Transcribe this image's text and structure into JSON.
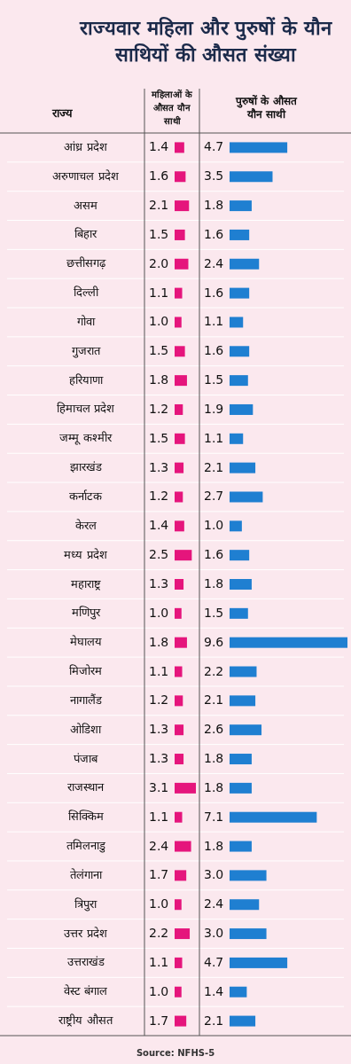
{
  "chart_data": [
    {
      "type": "bar",
      "orientation": "horizontal",
      "title": "राज्यवार महिला और पुरुषों के यौन साथियों की औसत संख्या",
      "subtitle": "महिलाओं के औसत यौन साथी",
      "ylabel": "राज्य",
      "categories": [
        "आंध्र प्रदेश",
        "अरुणाचल प्रदेश",
        "असम",
        "बिहार",
        "छत्तीसगढ़",
        "दिल्ली",
        "गोवा",
        "गुजरात",
        "हरियाणा",
        "हिमाचल प्रदेश",
        "जम्मू कश्मीर",
        "झारखंड",
        "कर्नाटक",
        "केरल",
        "मध्य प्रदेश",
        "महाराष्ट्र",
        "मणिपुर",
        "मेघालय",
        "मिजोरम",
        "नागालैंड",
        "ओडिशा",
        "पंजाब",
        "राजस्थान",
        "सिक्किम",
        "तमिलनाडु",
        "तेलंगाना",
        "त्रिपुरा",
        "उत्तर प्रदेश",
        "उत्तराखंड",
        "वेस्ट बंगाल",
        "राष्ट्रीय औसत"
      ],
      "color": "#e5157c",
      "values": [
        1.4,
        1.6,
        2.1,
        1.5,
        2.0,
        1.1,
        1.0,
        1.5,
        1.8,
        1.2,
        1.5,
        1.3,
        1.2,
        1.4,
        2.5,
        1.3,
        1.0,
        1.8,
        1.1,
        1.2,
        1.3,
        1.3,
        3.1,
        1.1,
        2.4,
        1.7,
        1.0,
        2.2,
        1.1,
        1.0,
        1.7
      ],
      "value_labels": [
        "1.4",
        "1.6",
        "2.1",
        "1.5",
        "2.0",
        "1.1",
        "1.0",
        "1.5",
        "1.8",
        "1.2",
        "1.5",
        "1.3",
        "1.2",
        "1.4",
        "2.5",
        "1.3",
        "1.0",
        "1.8",
        "1.1",
        "1.2",
        "1.3",
        "1.3",
        "3.1",
        "1.1",
        "2.4",
        "1.7",
        "1.0",
        "2.2",
        "1.1",
        "1.0",
        "1.7"
      ]
    },
    {
      "type": "bar",
      "orientation": "horizontal",
      "subtitle": "पुरुषों के औसत यौन साथी",
      "categories": [
        null,
        null,
        null,
        null,
        null,
        null,
        null,
        null,
        null,
        null,
        null,
        null,
        null,
        null,
        null,
        null,
        null,
        null,
        null,
        null,
        null,
        null,
        null,
        null,
        null,
        null,
        null,
        null,
        null,
        null,
        null
      ],
      "color": "#1f7fd1",
      "values": [
        4.7,
        3.5,
        1.8,
        1.6,
        2.4,
        1.6,
        1.1,
        1.6,
        1.5,
        1.9,
        1.1,
        2.1,
        2.7,
        1.0,
        1.6,
        1.8,
        1.5,
        9.6,
        2.2,
        2.1,
        2.6,
        1.8,
        1.8,
        7.1,
        1.8,
        3.0,
        2.4,
        3.0,
        4.7,
        1.4,
        2.1
      ],
      "value_labels": [
        "4.7",
        "3.5",
        "1.8",
        "1.6",
        "2.4",
        "1.6",
        "1.1",
        "1.6",
        "1.5",
        "1.9",
        "1.1",
        "2.1",
        "2.7",
        "1.0",
        "1.6",
        "1.8",
        "1.5",
        "9.6",
        "2.2",
        "2.1",
        "2.6",
        "1.8",
        "1.8",
        "7.1",
        "1.8",
        "3.0",
        "2.4",
        "3.0",
        "4.7",
        "1.4",
        "2.1"
      ],
      "annotations": [
        "Source: NFHS-5"
      ]
    }
  ]
}
